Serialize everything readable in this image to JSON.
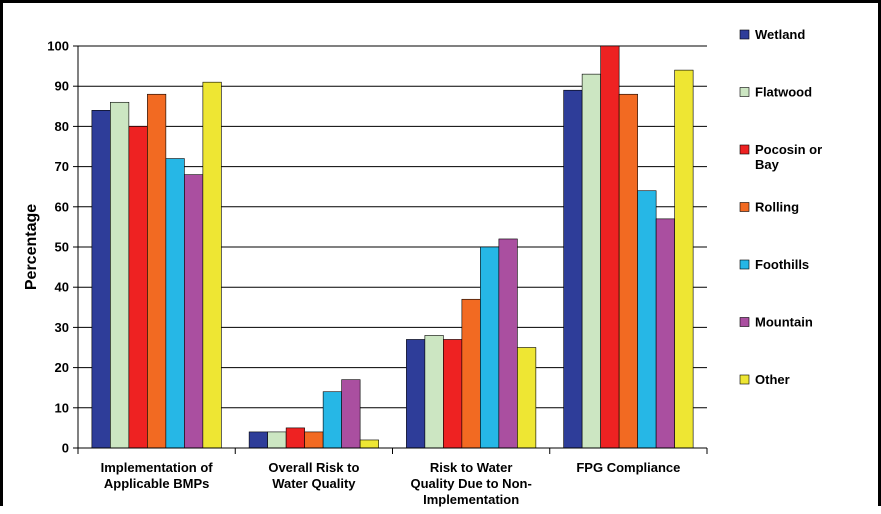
{
  "chart_data": {
    "type": "bar",
    "title": "",
    "xlabel": "",
    "ylabel": "Percentage",
    "ylim": [
      0,
      100
    ],
    "ytick_step": 10,
    "grid": true,
    "legend_position": "right",
    "categories": [
      [
        "Implementation of",
        "Applicable BMPs"
      ],
      [
        "Overall Risk to",
        "Water Quality"
      ],
      [
        "Risk to Water",
        "Quality Due to Non-",
        "Implementation"
      ],
      [
        "FPG Compliance"
      ]
    ],
    "series": [
      {
        "name": "Wetland",
        "legend_lines": [
          "Wetland"
        ],
        "color": "#2E3D99",
        "values": [
          84,
          4,
          27,
          89
        ]
      },
      {
        "name": "Flatwood",
        "legend_lines": [
          "Flatwood"
        ],
        "color": "#CCE6C2",
        "values": [
          86,
          4,
          28,
          93
        ]
      },
      {
        "name": "Pocosin or Bay",
        "legend_lines": [
          "Pocosin or",
          "Bay"
        ],
        "color": "#EE2222",
        "values": [
          80,
          5,
          27,
          100
        ]
      },
      {
        "name": "Rolling",
        "legend_lines": [
          "Rolling"
        ],
        "color": "#F26A22",
        "values": [
          88,
          4,
          37,
          88
        ]
      },
      {
        "name": "Foothills",
        "legend_lines": [
          "Foothills"
        ],
        "color": "#26B7E6",
        "values": [
          72,
          14,
          50,
          64
        ]
      },
      {
        "name": "Mountain",
        "legend_lines": [
          "Mountain"
        ],
        "color": "#AA4FA0",
        "values": [
          68,
          17,
          52,
          57
        ]
      },
      {
        "name": "Other",
        "legend_lines": [
          "Other"
        ],
        "color": "#EEE633",
        "values": [
          91,
          2,
          25,
          94
        ]
      }
    ]
  }
}
